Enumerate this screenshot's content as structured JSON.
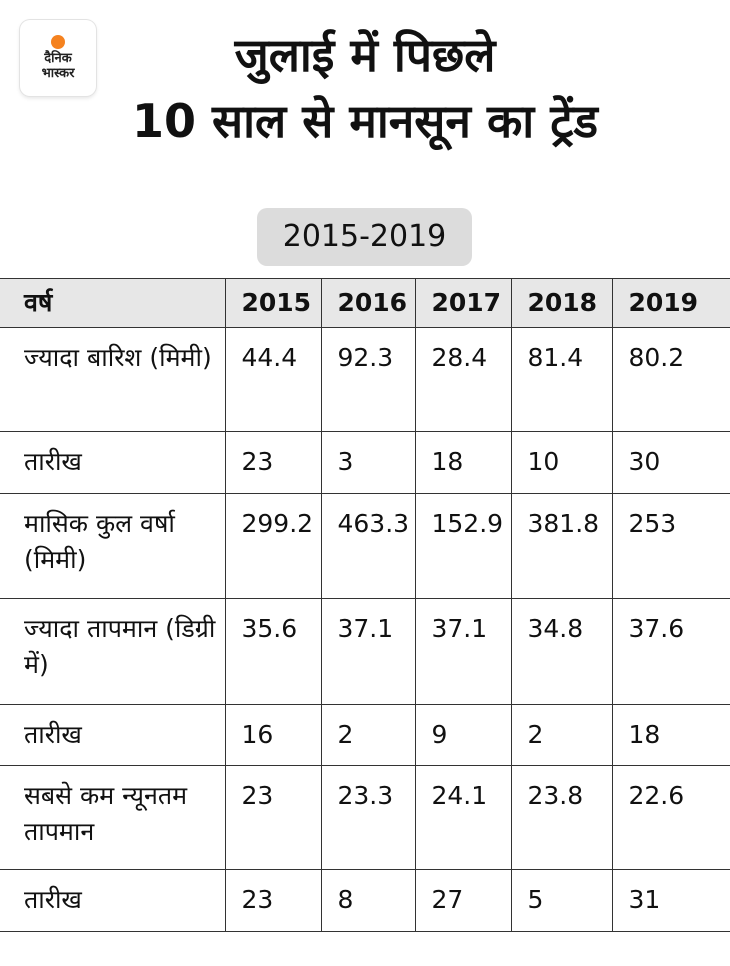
{
  "brand": {
    "logo_line1": "दैनिक",
    "logo_line2": "भास्कर",
    "accent": "#f5821f"
  },
  "title": {
    "line1": "जुलाई में पिछले",
    "line2": "10 साल से मानसून का ट्रेंड"
  },
  "year_range": "2015-2019",
  "table": {
    "header": [
      "वर्ष",
      "2015",
      "2016",
      "2017",
      "2018",
      "2019"
    ],
    "rows": [
      {
        "label": "ज्यादा बारिश (मिमी)",
        "values": [
          "44.4",
          "92.3",
          "28.4",
          "81.4",
          "80.2"
        ]
      },
      {
        "label": "तारीख",
        "values": [
          "23",
          "3",
          "18",
          "10",
          "30"
        ]
      },
      {
        "label": "मासिक कुल वर्षा (मिमी)",
        "values": [
          "299.2",
          "463.3",
          "152.9",
          "381.8",
          "253"
        ]
      },
      {
        "label": "ज्यादा तापमान (डिग्री में)",
        "values": [
          "35.6",
          "37.1",
          "37.1",
          "34.8",
          "37.6"
        ]
      },
      {
        "label": "तारीख",
        "values": [
          "16",
          "2",
          "9",
          "2",
          "18"
        ]
      },
      {
        "label": "सबसे कम न्यूनतम तापमान",
        "values": [
          "23",
          "23.3",
          "24.1",
          "23.8",
          "22.6"
        ]
      },
      {
        "label": "तारीख",
        "values": [
          "23",
          "8",
          "27",
          "5",
          "31"
        ]
      }
    ]
  }
}
